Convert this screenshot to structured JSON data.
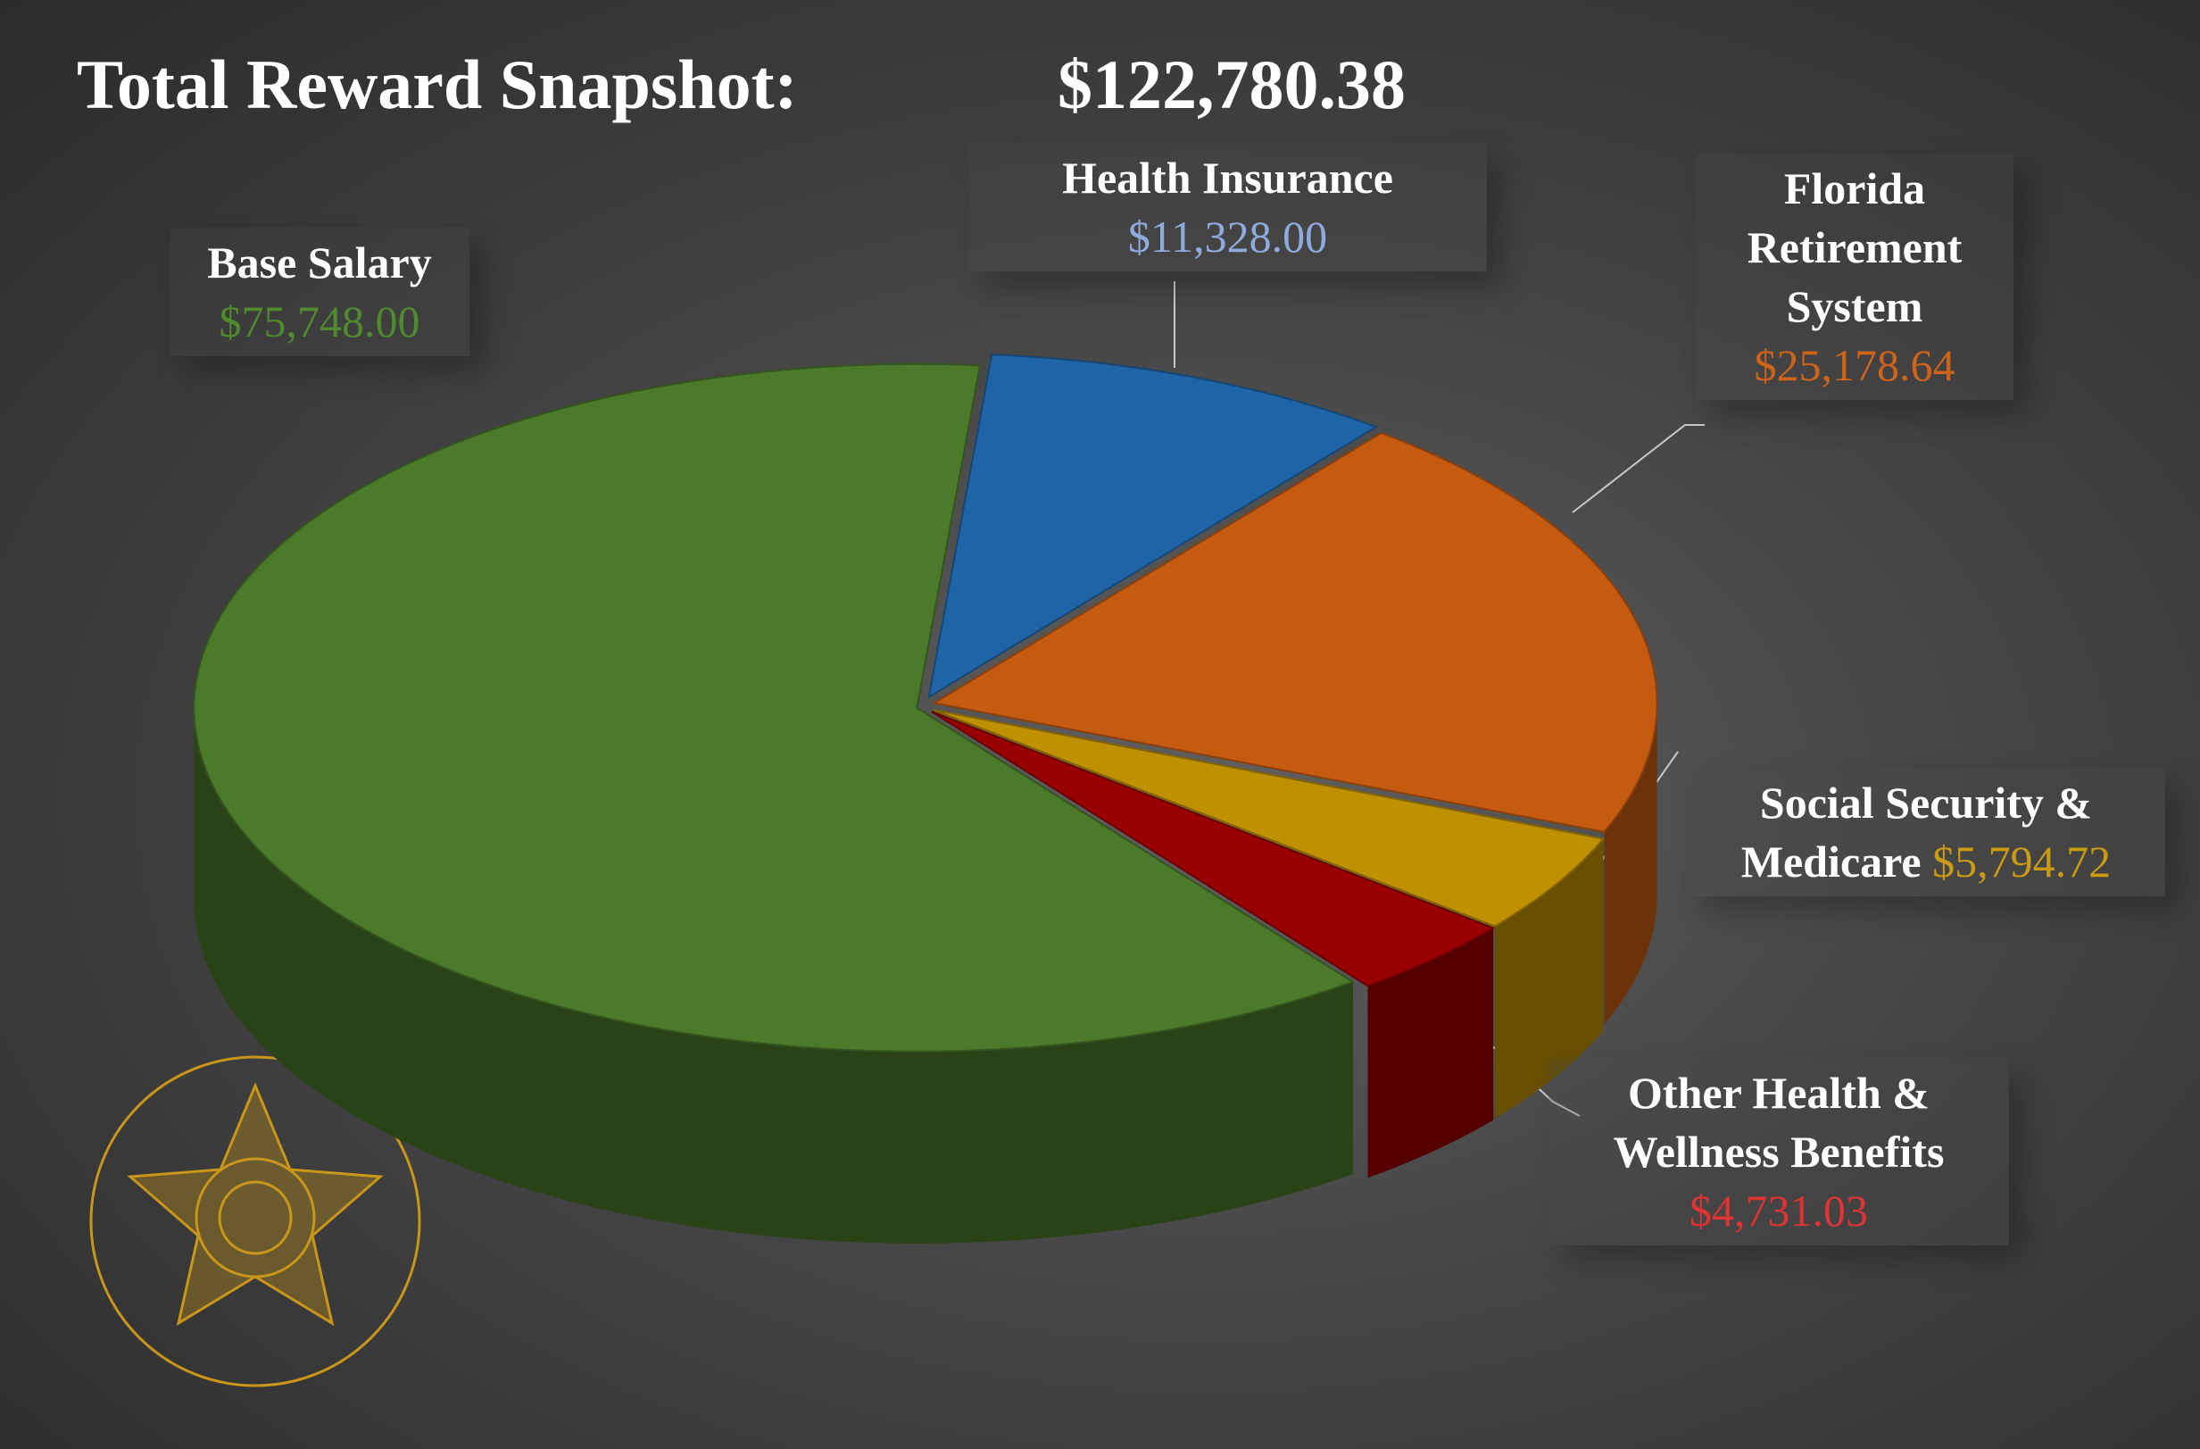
{
  "chart_data": {
    "type": "pie",
    "title": "Total Reward Snapshot:",
    "total": "$122,780.38",
    "categories": [
      "Health Insurance",
      "Florida Retirement System",
      "Social Security & Medicare",
      "Other Health & Wellness Benefits",
      "Base Salary"
    ],
    "values": [
      11328.0,
      25178.64,
      5794.72,
      4731.03,
      75748.0
    ],
    "value_labels": [
      "$11,328.00",
      "$25,178.64",
      "$5,794.72",
      "$4,731.03",
      "$75,748.00"
    ],
    "colors": [
      "#1f64a6",
      "#c55a11",
      "#bf9000",
      "#990000",
      "#4a7a2a"
    ],
    "value_label_colors": [
      "#8faadc",
      "#d0631a",
      "#c99a12",
      "#e03333",
      "#4f8a2e"
    ]
  }
}
